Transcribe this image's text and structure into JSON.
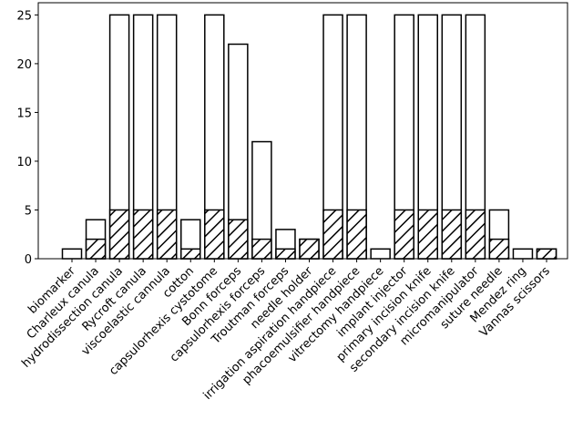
{
  "chart_data": {
    "type": "bar",
    "categories": [
      "biomarker",
      "Charleux canula",
      "hydrodissection canula",
      "Rycroft canula",
      "viscoelastic cannula",
      "cotton",
      "capsulorhexis cystotome",
      "Bonn forceps",
      "capsulorhexis forceps",
      "Troutman forceps",
      "needle holder",
      "irrigation aspiration handpiece",
      "phacoemulsifier handpiece",
      "vitrectomy handpiece",
      "implant injector",
      "primary incision knife",
      "secondary incision knife",
      "micromanipulator",
      "suture needle",
      "Mendez ring",
      "Vannas scissors"
    ],
    "series": [
      {
        "color": "#ffffff",
        "values": [
          1,
          4,
          25,
          25,
          25,
          4,
          25,
          22,
          12,
          3,
          2,
          25,
          25,
          1,
          25,
          25,
          25,
          25,
          5,
          1,
          1
        ]
      },
      {
        "color": "#ffffff",
        "hatch": "//",
        "values": [
          0,
          2,
          5,
          5,
          5,
          1,
          5,
          4,
          2,
          1,
          2,
          5,
          5,
          0,
          5,
          5,
          5,
          5,
          2,
          0,
          1
        ]
      }
    ],
    "ylim": [
      0,
      26.25
    ],
    "yticks": [
      0,
      5,
      10,
      15,
      20,
      25
    ]
  }
}
